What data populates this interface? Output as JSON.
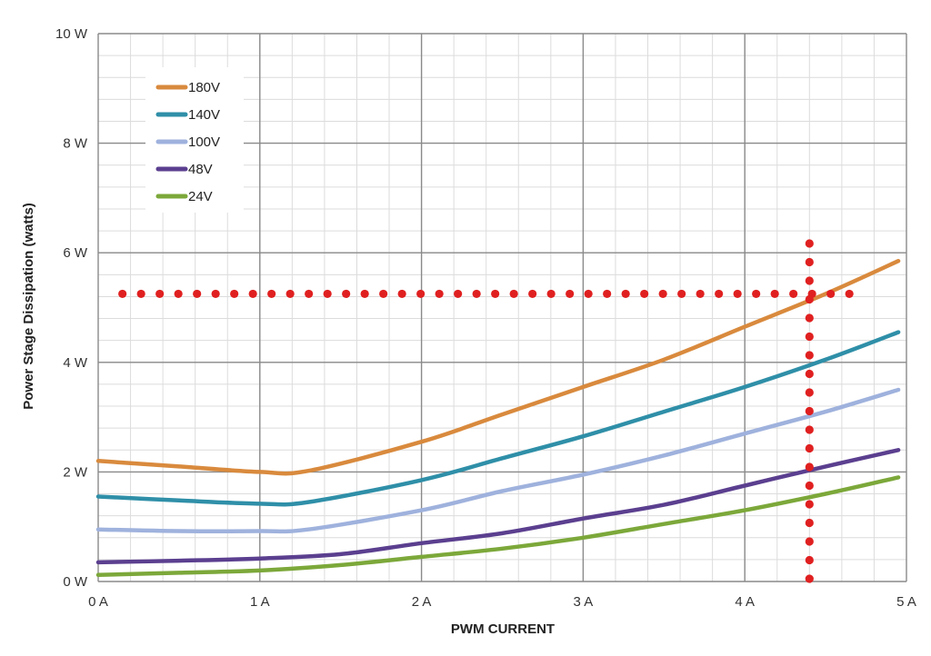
{
  "chart_data": {
    "type": "line",
    "xlabel": "PWM CURRENT",
    "ylabel": "Power Stage Dissipation (watts)",
    "xlim": [
      0,
      5
    ],
    "ylim": [
      0,
      10
    ],
    "x_ticks": [
      {
        "value": 0,
        "label": "0 A"
      },
      {
        "value": 1,
        "label": "1 A"
      },
      {
        "value": 2,
        "label": "2 A"
      },
      {
        "value": 3,
        "label": "3 A"
      },
      {
        "value": 4,
        "label": "4 A"
      },
      {
        "value": 5,
        "label": "5 A"
      }
    ],
    "y_ticks": [
      {
        "value": 0,
        "label": "0 W"
      },
      {
        "value": 2,
        "label": "2 W"
      },
      {
        "value": 4,
        "label": "4 W"
      },
      {
        "value": 6,
        "label": "6 W"
      },
      {
        "value": 8,
        "label": "8 W"
      },
      {
        "value": 10,
        "label": "10 W"
      }
    ],
    "minor_x_step": 0.2,
    "minor_y_step": 0.4,
    "grid": true,
    "legend_position": "top-left",
    "series": [
      {
        "name": "180V",
        "color": "#d98a3d",
        "x": [
          0,
          0.5,
          1,
          1.3,
          2,
          2.5,
          3,
          3.5,
          4,
          4.5,
          4.95
        ],
        "y": [
          2.2,
          2.1,
          2.0,
          2.02,
          2.55,
          3.05,
          3.55,
          4.05,
          4.65,
          5.25,
          5.85
        ]
      },
      {
        "name": "140V",
        "color": "#2f8fa8",
        "x": [
          0,
          0.5,
          1,
          1.3,
          2,
          2.5,
          3,
          3.5,
          4,
          4.5,
          4.95
        ],
        "y": [
          1.55,
          1.48,
          1.42,
          1.45,
          1.85,
          2.25,
          2.65,
          3.1,
          3.55,
          4.05,
          4.55
        ]
      },
      {
        "name": "100V",
        "color": "#9fb2dd",
        "x": [
          0,
          0.5,
          1,
          1.3,
          2,
          2.5,
          3,
          3.5,
          4,
          4.5,
          4.95
        ],
        "y": [
          0.95,
          0.92,
          0.92,
          0.95,
          1.3,
          1.65,
          1.95,
          2.3,
          2.7,
          3.1,
          3.5
        ]
      },
      {
        "name": "48V",
        "color": "#5b3f8f",
        "x": [
          0,
          0.5,
          1,
          1.5,
          2,
          2.5,
          3,
          3.5,
          4,
          4.5,
          4.95
        ],
        "y": [
          0.35,
          0.38,
          0.42,
          0.5,
          0.7,
          0.88,
          1.15,
          1.4,
          1.75,
          2.1,
          2.4
        ]
      },
      {
        "name": "24V",
        "color": "#7ca83a",
        "x": [
          0,
          0.5,
          1,
          1.5,
          2,
          2.5,
          3,
          3.5,
          4,
          4.5,
          4.95
        ],
        "y": [
          0.12,
          0.16,
          0.2,
          0.3,
          0.45,
          0.6,
          0.8,
          1.05,
          1.3,
          1.6,
          1.9
        ]
      }
    ],
    "annotations": [
      {
        "type": "dotted-hline",
        "y": 5.25,
        "x_from": 0.15,
        "x_to": 4.7,
        "color": "#e02020"
      },
      {
        "type": "dotted-vline",
        "x": 4.4,
        "y_from": 0.05,
        "y_to": 6.3,
        "color": "#e02020"
      }
    ]
  }
}
